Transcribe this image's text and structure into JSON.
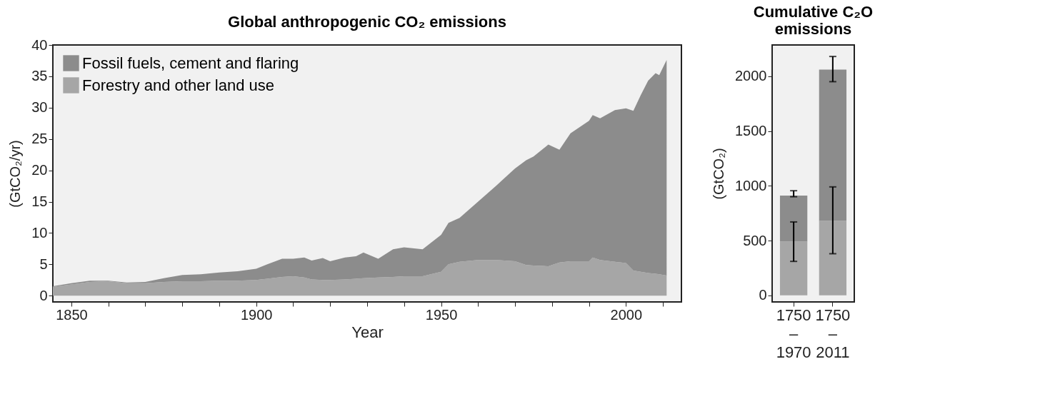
{
  "chart_data": [
    {
      "type": "area",
      "title": "Global anthropogenic CO₂ emissions",
      "xlabel": "Year",
      "ylabel": "(GtCO₂/yr)",
      "stacked": true,
      "legend": "top left",
      "grid": false,
      "x": [
        1845,
        1850,
        1855,
        1860,
        1865,
        1870,
        1875,
        1880,
        1885,
        1890,
        1895,
        1900,
        1903,
        1907,
        1910,
        1913,
        1915,
        1918,
        1920,
        1924,
        1927,
        1929,
        1933,
        1937,
        1940,
        1945,
        1950,
        1952,
        1955,
        1960,
        1965,
        1970,
        1973,
        1975,
        1979,
        1982,
        1985,
        1990,
        1991,
        1993,
        1997,
        2000,
        2002,
        2004,
        2006,
        2008,
        2009,
        2011
      ],
      "series": [
        {
          "name": "Forestry and other land use",
          "color": "#a6a6a6",
          "values": [
            1.4,
            1.8,
            2.2,
            2.3,
            2.0,
            2.0,
            2.2,
            2.3,
            2.3,
            2.4,
            2.4,
            2.5,
            2.7,
            3.0,
            3.1,
            2.9,
            2.6,
            2.5,
            2.5,
            2.6,
            2.7,
            2.8,
            2.9,
            3.0,
            3.1,
            3.1,
            3.8,
            5.0,
            5.4,
            5.7,
            5.7,
            5.5,
            4.9,
            4.8,
            4.7,
            5.3,
            5.5,
            5.5,
            6.1,
            5.7,
            5.4,
            5.2,
            4.0,
            3.8,
            3.6,
            3.5,
            3.4,
            3.2
          ]
        },
        {
          "name": "Fossil fuels, cement and flaring",
          "color": "#8c8c8c",
          "values": [
            0.1,
            0.2,
            0.2,
            0.1,
            0.1,
            0.2,
            0.6,
            1.0,
            1.1,
            1.3,
            1.5,
            1.8,
            2.3,
            2.9,
            2.8,
            3.2,
            3.0,
            3.5,
            3.0,
            3.5,
            3.6,
            4.1,
            3.0,
            4.4,
            4.6,
            4.3,
            5.9,
            6.6,
            7.0,
            9.3,
            11.9,
            14.8,
            16.7,
            17.4,
            19.4,
            18.0,
            20.4,
            22.4,
            22.7,
            22.6,
            24.2,
            24.7,
            25.5,
            28.2,
            30.7,
            32.0,
            31.8,
            34.4
          ]
        }
      ],
      "xlim": [
        1845,
        2015
      ],
      "ylim": [
        -1,
        40
      ],
      "xticks": [
        1850,
        {
          "value": 1860,
          "label": null
        },
        {
          "value": 1870,
          "label": null
        },
        {
          "value": 1880,
          "label": null
        },
        {
          "value": 1890,
          "label": null
        },
        1900,
        {
          "value": 1910,
          "label": null
        },
        {
          "value": 1920,
          "label": null
        },
        {
          "value": 1930,
          "label": null
        },
        {
          "value": 1940,
          "label": null
        },
        1950,
        {
          "value": 1960,
          "label": null
        },
        {
          "value": 1970,
          "label": null
        },
        {
          "value": 1980,
          "label": null
        },
        {
          "value": 1990,
          "label": null
        },
        2000,
        {
          "value": 2010,
          "label": null
        }
      ],
      "yticks": [
        0,
        5,
        10,
        15,
        20,
        25,
        30,
        35,
        40
      ]
    },
    {
      "type": "bar",
      "title": "Cumulative C₂O emissions",
      "ylabel": "(GtCO₂)",
      "stacked": true,
      "legend": false,
      "grid": false,
      "categories": [
        "1750 – 1970",
        "1750 – 2011"
      ],
      "series": [
        {
          "color": "#a6a6a6",
          "values": [
            490,
            680
          ],
          "errors": [
            [
              310,
              670
            ],
            [
              380,
              990
            ]
          ]
        },
        {
          "color": "#8c8c8c",
          "values": [
            420,
            1380
          ],
          "errors": [
            [
              900,
              955
            ],
            [
              1950,
              2180
            ]
          ]
        }
      ],
      "ylim": [
        -60,
        2285
      ],
      "yticks": [
        0,
        500,
        1000,
        1500,
        2000
      ]
    }
  ]
}
